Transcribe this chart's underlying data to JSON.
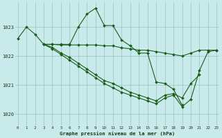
{
  "title": "Graphe pression niveau de la mer (hPa)",
  "background_color": "#c8eaea",
  "line_color": "#1a5c1a",
  "x_ticks": [
    0,
    1,
    2,
    3,
    4,
    5,
    6,
    7,
    8,
    9,
    10,
    11,
    12,
    13,
    14,
    15,
    16,
    17,
    18,
    19,
    20,
    21,
    22,
    23
  ],
  "ylim": [
    1019.6,
    1023.85
  ],
  "yticks": [
    1020,
    1021,
    1022,
    1023
  ],
  "series": [
    {
      "x": [
        0,
        1,
        2,
        3,
        4,
        5,
        6,
        7,
        8,
        9,
        10,
        11,
        12,
        13,
        14,
        15,
        16,
        17,
        18,
        19
      ],
      "y": [
        1022.6,
        1023.0,
        1022.75,
        1022.4,
        1022.4,
        1022.4,
        1022.4,
        1023.0,
        1023.45,
        1023.65,
        1023.05,
        1023.05,
        1022.55,
        1022.35,
        1022.1,
        1022.1,
        1021.1,
        1021.05,
        1020.85,
        1020.3
      ]
    },
    {
      "x": [
        3,
        4,
        5,
        6,
        7,
        8,
        9,
        10,
        11,
        12,
        13,
        14,
        15,
        16,
        17,
        18,
        19,
        20,
        21,
        22,
        23
      ],
      "y": [
        1022.4,
        1022.4,
        1022.38,
        1022.38,
        1022.38,
        1022.38,
        1022.38,
        1022.35,
        1022.35,
        1022.28,
        1022.25,
        1022.2,
        1022.2,
        1022.15,
        1022.1,
        1022.05,
        1022.0,
        1022.1,
        1022.2,
        1022.2,
        1022.2
      ]
    },
    {
      "x": [
        3,
        4,
        5,
        6,
        7,
        8,
        9,
        10,
        11,
        12,
        13,
        14,
        15,
        16,
        17,
        18,
        19,
        20,
        21
      ],
      "y": [
        1022.4,
        1022.3,
        1022.1,
        1021.95,
        1021.75,
        1021.55,
        1021.35,
        1021.15,
        1021.05,
        1020.9,
        1020.75,
        1020.65,
        1020.55,
        1020.45,
        1020.65,
        1020.7,
        1020.55,
        1021.05,
        1021.35
      ]
    },
    {
      "x": [
        3,
        4,
        5,
        6,
        7,
        8,
        9,
        10,
        11,
        12,
        13,
        14,
        15,
        16,
        17,
        18,
        19,
        20,
        21,
        22,
        23
      ],
      "y": [
        1022.4,
        1022.25,
        1022.05,
        1021.85,
        1021.65,
        1021.45,
        1021.25,
        1021.05,
        1020.9,
        1020.75,
        1020.65,
        1020.55,
        1020.45,
        1020.35,
        1020.55,
        1020.65,
        1020.25,
        1020.5,
        1021.5,
        1022.15,
        1022.2
      ]
    }
  ]
}
